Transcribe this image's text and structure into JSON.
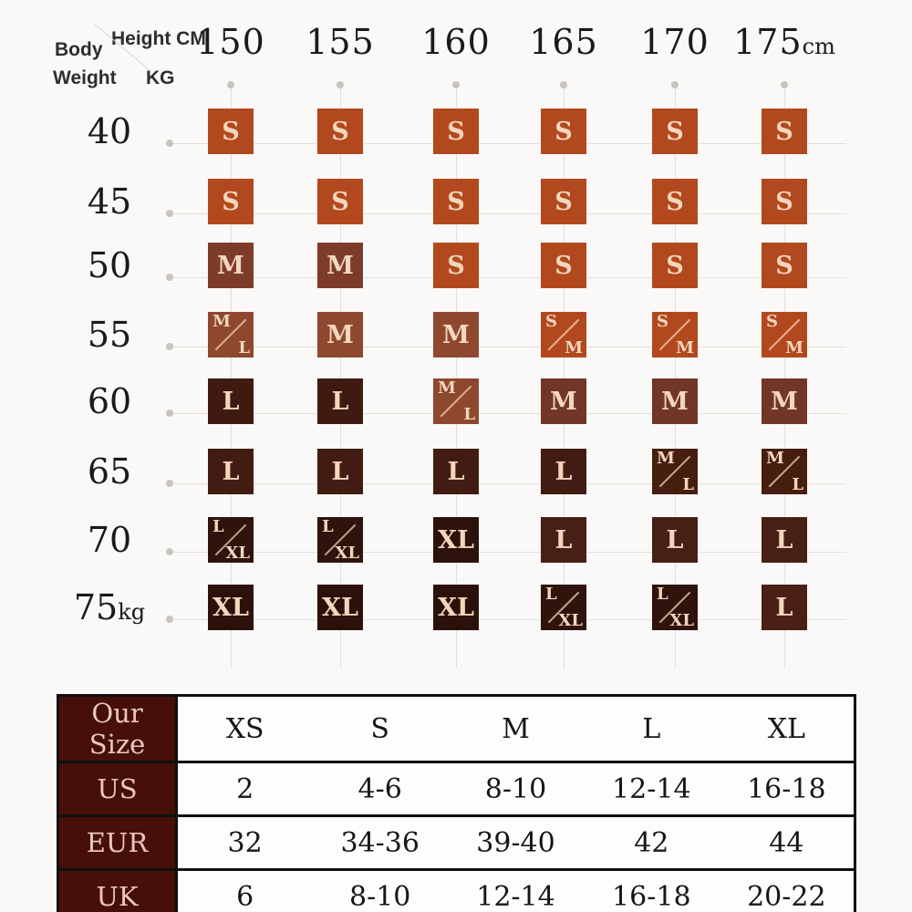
{
  "header": {
    "body_label": "Body",
    "weight_label": "Weight",
    "weight_unit": "KG",
    "height_label": "Height CM"
  },
  "matrix": {
    "columns": [
      {
        "num": "150",
        "suffix": ""
      },
      {
        "num": "155",
        "suffix": ""
      },
      {
        "num": "160",
        "suffix": ""
      },
      {
        "num": "165",
        "suffix": ""
      },
      {
        "num": "170",
        "suffix": ""
      },
      {
        "num": "175",
        "suffix": "cm"
      }
    ],
    "rows": [
      {
        "num": "40",
        "suffix": ""
      },
      {
        "num": "45",
        "suffix": ""
      },
      {
        "num": "50",
        "suffix": ""
      },
      {
        "num": "55",
        "suffix": ""
      },
      {
        "num": "60",
        "suffix": ""
      },
      {
        "num": "65",
        "suffix": ""
      },
      {
        "num": "70",
        "suffix": ""
      },
      {
        "num": "75",
        "suffix": "kg"
      }
    ],
    "cells": [
      [
        {
          "text": "S",
          "bg": "#b2491e"
        },
        {
          "text": "S",
          "bg": "#b2491e"
        },
        {
          "text": "S",
          "bg": "#b2491e"
        },
        {
          "text": "S",
          "bg": "#b2491e"
        },
        {
          "text": "S",
          "bg": "#b2491e"
        },
        {
          "text": "S",
          "bg": "#b2491e"
        }
      ],
      [
        {
          "text": "S",
          "bg": "#b2491e"
        },
        {
          "text": "S",
          "bg": "#b2491e"
        },
        {
          "text": "S",
          "bg": "#b2491e"
        },
        {
          "text": "S",
          "bg": "#b2491e"
        },
        {
          "text": "S",
          "bg": "#b2491e"
        },
        {
          "text": "S",
          "bg": "#b2491e"
        }
      ],
      [
        {
          "text": "M",
          "bg": "#7d3c2b"
        },
        {
          "text": "M",
          "bg": "#7d3c2b"
        },
        {
          "text": "S",
          "bg": "#b2491e"
        },
        {
          "text": "S",
          "bg": "#b2491e"
        },
        {
          "text": "S",
          "bg": "#b2491e"
        },
        {
          "text": "S",
          "bg": "#b2491e"
        }
      ],
      [
        {
          "top": "M",
          "bottom": "L",
          "bg": "#8d482e"
        },
        {
          "text": "M",
          "bg": "#8d482e"
        },
        {
          "text": "M",
          "bg": "#8d482e"
        },
        {
          "top": "S",
          "bottom": "M",
          "bg": "#b2491e"
        },
        {
          "top": "S",
          "bottom": "M",
          "bg": "#b2491e"
        },
        {
          "top": "S",
          "bottom": "M",
          "bg": "#b2491e"
        }
      ],
      [
        {
          "text": "L",
          "bg": "#3f1a10"
        },
        {
          "text": "L",
          "bg": "#3f1a10"
        },
        {
          "top": "M",
          "bottom": "L",
          "bg": "#8d482e"
        },
        {
          "text": "M",
          "bg": "#713627"
        },
        {
          "text": "M",
          "bg": "#713627"
        },
        {
          "text": "M",
          "bg": "#713627"
        }
      ],
      [
        {
          "text": "L",
          "bg": "#421c12"
        },
        {
          "text": "L",
          "bg": "#421c12"
        },
        {
          "text": "L",
          "bg": "#421c12"
        },
        {
          "text": "L",
          "bg": "#421c12"
        },
        {
          "top": "M",
          "bottom": "L",
          "bg": "#451e10"
        },
        {
          "top": "M",
          "bottom": "L",
          "bg": "#451e10"
        }
      ],
      [
        {
          "top": "L",
          "bottom": "XL",
          "bg": "#2f130c"
        },
        {
          "top": "L",
          "bottom": "XL",
          "bg": "#2f130c"
        },
        {
          "text": "XL",
          "bg": "#2d110b"
        },
        {
          "text": "L",
          "bg": "#471f14"
        },
        {
          "text": "L",
          "bg": "#471f14"
        },
        {
          "text": "L",
          "bg": "#471f14"
        }
      ],
      [
        {
          "text": "XL",
          "bg": "#2c110b"
        },
        {
          "text": "XL",
          "bg": "#2c110b"
        },
        {
          "text": "XL",
          "bg": "#2c110b"
        },
        {
          "top": "L",
          "bottom": "XL",
          "bg": "#2f130c"
        },
        {
          "top": "L",
          "bottom": "XL",
          "bg": "#2f130c"
        },
        {
          "text": "L",
          "bg": "#4a2015"
        }
      ]
    ]
  },
  "conversion_table": {
    "rows": [
      {
        "label": "Our Size",
        "values": [
          "XS",
          "S",
          "M",
          "L",
          "XL"
        ]
      },
      {
        "label": "US",
        "values": [
          "2",
          "4-6",
          "8-10",
          "12-14",
          "16-18"
        ]
      },
      {
        "label": "EUR",
        "values": [
          "32",
          "34-36",
          "39-40",
          "42",
          "44"
        ]
      },
      {
        "label": "UK",
        "values": [
          "6",
          "8-10",
          "12-14",
          "16-18",
          "20-22"
        ]
      }
    ]
  },
  "colors": {
    "size_s_orange": "#b2491e",
    "size_m_brown": "#7d3c2b",
    "size_l_dark": "#421c12",
    "size_xl_darkest": "#2c110b",
    "table_header_bg": "#470f0a",
    "table_header_text": "#eac8bf",
    "grid_line": "#e2dfdb"
  },
  "chart_data": [
    {
      "type": "heatmap",
      "title": "Size by body weight (KG) and height (CM)",
      "xlabel": "Height CM",
      "ylabel": "Body Weight KG",
      "x_categories": [
        "150",
        "155",
        "160",
        "165",
        "170",
        "175"
      ],
      "y_categories": [
        "40",
        "45",
        "50",
        "55",
        "60",
        "65",
        "70",
        "75"
      ],
      "values": [
        [
          "S",
          "S",
          "S",
          "S",
          "S",
          "S"
        ],
        [
          "S",
          "S",
          "S",
          "S",
          "S",
          "S"
        ],
        [
          "M",
          "M",
          "S",
          "S",
          "S",
          "S"
        ],
        [
          "M/L",
          "M",
          "M",
          "S/M",
          "S/M",
          "S/M"
        ],
        [
          "L",
          "L",
          "M/L",
          "M",
          "M",
          "M"
        ],
        [
          "L",
          "L",
          "L",
          "L",
          "M/L",
          "M/L"
        ],
        [
          "L/XL",
          "L/XL",
          "XL",
          "L",
          "L",
          "L"
        ],
        [
          "XL",
          "XL",
          "XL",
          "L/XL",
          "L/XL",
          "L"
        ]
      ]
    },
    {
      "type": "table",
      "columns": [
        "Our Size",
        "XS",
        "S",
        "M",
        "L",
        "XL"
      ],
      "rows": [
        [
          "US",
          "2",
          "4-6",
          "8-10",
          "12-14",
          "16-18"
        ],
        [
          "EUR",
          "32",
          "34-36",
          "39-40",
          "42",
          "44"
        ],
        [
          "UK",
          "6",
          "8-10",
          "12-14",
          "16-18",
          "20-22"
        ]
      ]
    }
  ]
}
